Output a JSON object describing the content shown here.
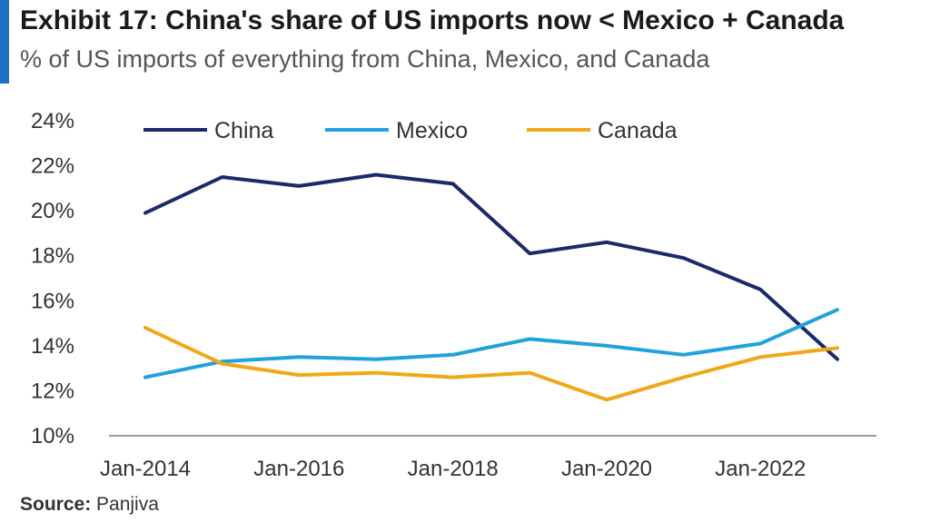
{
  "header": {
    "title": "Exhibit 17: China's share of US imports now < Mexico + Canada",
    "subtitle": "% of US imports of everything from China, Mexico, and Canada"
  },
  "footer": {
    "source_label": "Source:",
    "source_value": " Panjiva"
  },
  "colors": {
    "accent": "#1f6fc6",
    "china": "#1b2a6b",
    "mexico": "#1fa3dc",
    "canada": "#f0a818"
  },
  "chart_data": {
    "type": "line",
    "title": "",
    "xlabel": "",
    "ylabel": "",
    "x": [
      2014,
      2015,
      2016,
      2017,
      2018,
      2019,
      2020,
      2021,
      2022,
      2023
    ],
    "x_tick_values": [
      2014,
      2016,
      2018,
      2020,
      2022
    ],
    "x_tick_labels": [
      "Jan-2014",
      "Jan-2016",
      "Jan-2018",
      "Jan-2020",
      "Jan-2022"
    ],
    "ylim": [
      10,
      24
    ],
    "y_ticks": [
      10,
      12,
      14,
      16,
      18,
      20,
      22,
      24
    ],
    "y_tick_labels": [
      "10%",
      "12%",
      "14%",
      "16%",
      "18%",
      "20%",
      "22%",
      "24%"
    ],
    "grid": false,
    "legend_position": "top",
    "series": [
      {
        "name": "China",
        "color": "#1b2a6b",
        "values": [
          19.9,
          21.5,
          21.1,
          21.6,
          21.2,
          18.1,
          18.6,
          17.9,
          16.5,
          13.4
        ]
      },
      {
        "name": "Mexico",
        "color": "#1fa3dc",
        "values": [
          12.6,
          13.3,
          13.5,
          13.4,
          13.6,
          14.3,
          14.0,
          13.6,
          14.1,
          15.6
        ]
      },
      {
        "name": "Canada",
        "color": "#f0a818",
        "values": [
          14.8,
          13.2,
          12.7,
          12.8,
          12.6,
          12.8,
          11.6,
          12.6,
          13.5,
          13.9
        ]
      }
    ]
  }
}
